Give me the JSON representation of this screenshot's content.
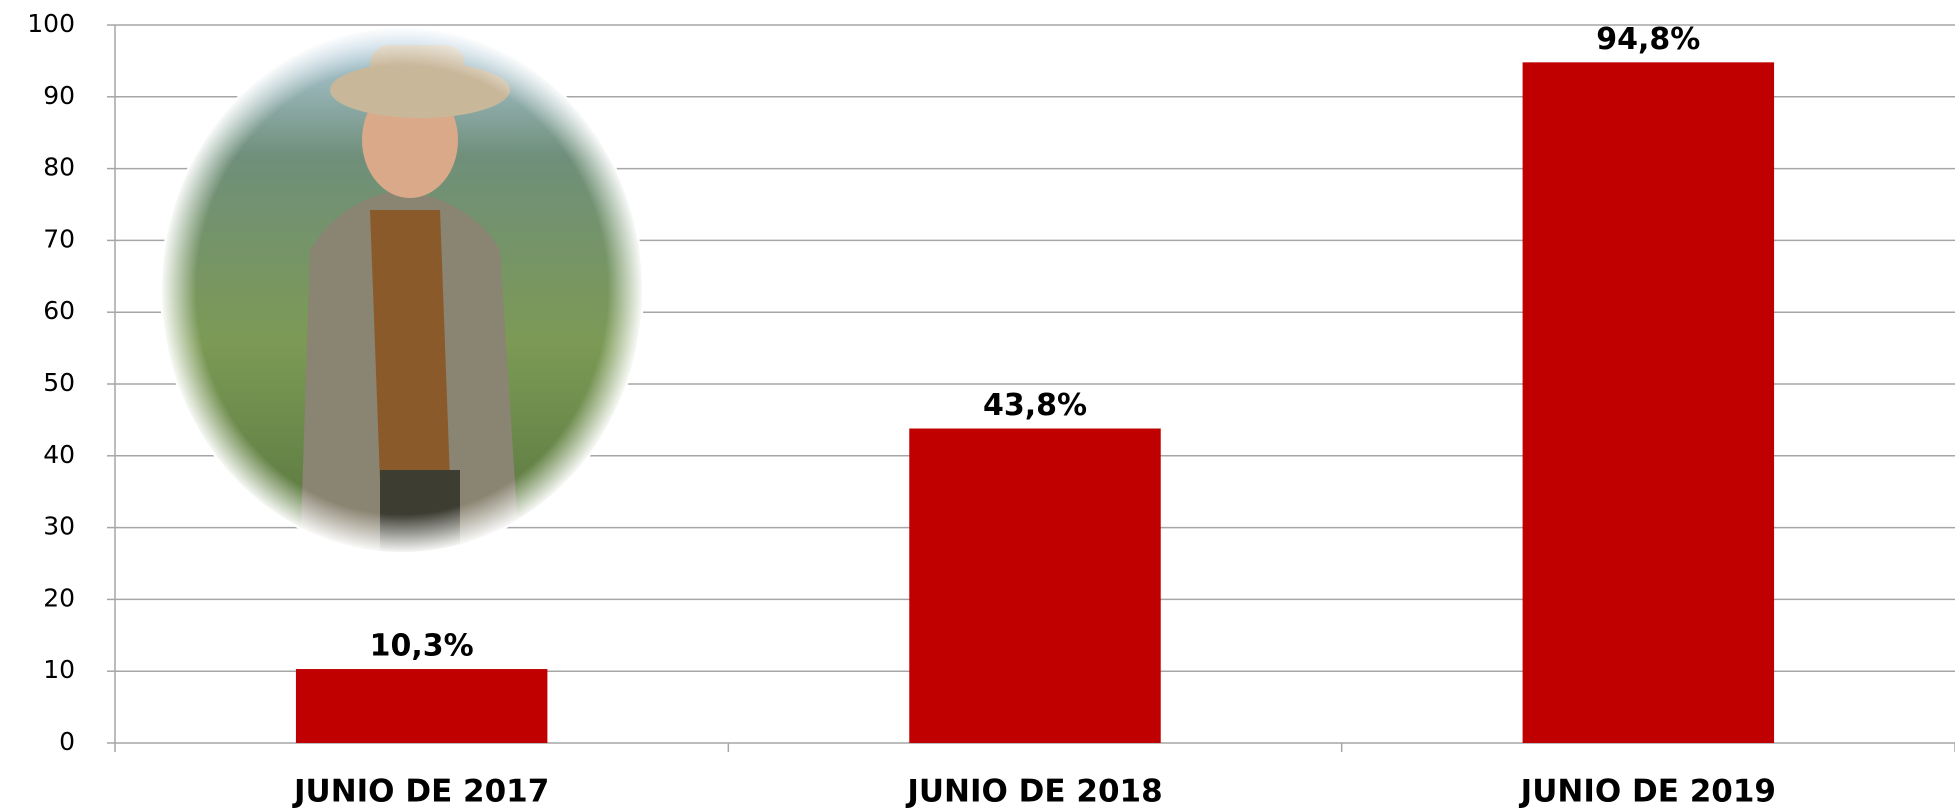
{
  "chart_data": {
    "type": "bar",
    "categories": [
      "JUNIO DE 2017",
      "JUNIO DE 2018",
      "JUNIO DE 2019"
    ],
    "values": [
      10.3,
      43.8,
      94.8
    ],
    "value_labels": [
      "10,3%",
      "43,8%",
      "94,8%"
    ],
    "color": "#c00000",
    "ylim": [
      0,
      100
    ],
    "yticks": [
      0,
      10,
      20,
      30,
      40,
      50,
      60,
      70,
      80,
      90,
      100
    ],
    "grid": true
  }
}
